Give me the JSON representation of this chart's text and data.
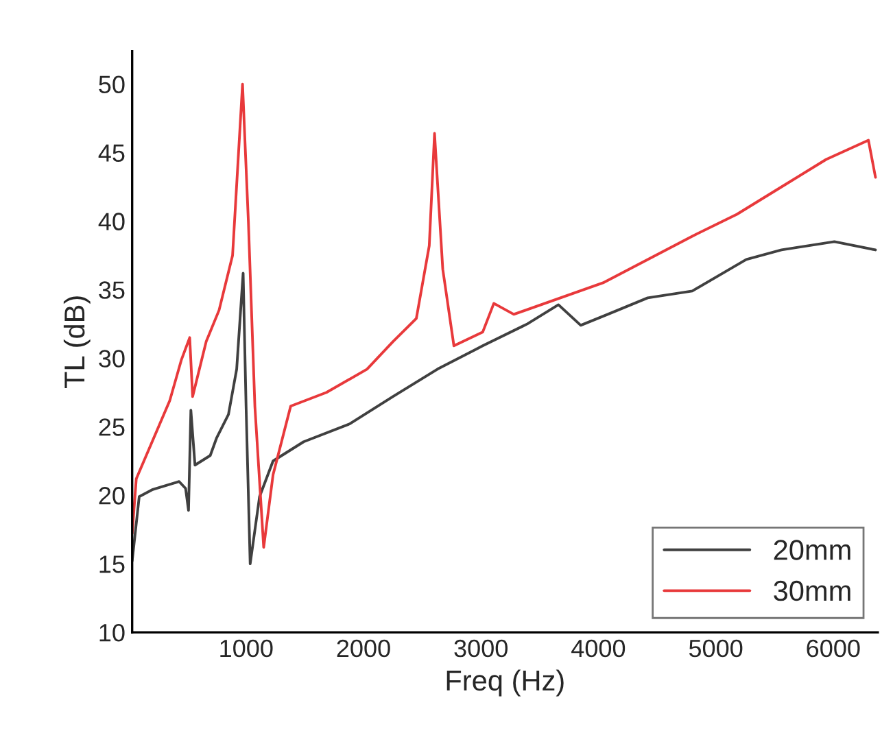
{
  "chart_data": {
    "type": "line",
    "xlabel": "Freq (Hz)",
    "ylabel": "TL (dB)",
    "xlim": [
      30,
      6380
    ],
    "ylim": [
      10,
      52.4
    ],
    "xticks": [
      1000,
      2000,
      3000,
      4000,
      5000,
      6000
    ],
    "yticks": [
      10,
      15,
      20,
      25,
      30,
      35,
      40,
      45,
      50
    ],
    "grid": false,
    "legend": "bottom right",
    "marker": "none",
    "line_style": "solid",
    "series": [
      {
        "name": "20mm",
        "color": "#404040",
        "x": [
          30,
          90,
          200,
          430,
          485,
          510,
          530,
          565,
          695,
          750,
          850,
          920,
          975,
          1000,
          1035,
          1115,
          1230,
          1490,
          1880,
          2250,
          2630,
          3015,
          3395,
          3660,
          3850,
          4080,
          4420,
          4800,
          5260,
          5560,
          6010,
          6360
        ],
        "values": [
          15.2,
          19.9,
          20.4,
          21,
          20.5,
          18.9,
          26.2,
          22.2,
          22.9,
          24.2,
          25.9,
          29.2,
          36.2,
          26.5,
          15,
          19.9,
          22.5,
          23.9,
          25.2,
          27.2,
          29.2,
          30.9,
          32.5,
          33.9,
          32.4,
          33.2,
          34.4,
          34.9,
          37.2,
          37.9,
          38.5,
          37.9
        ]
      },
      {
        "name": "30mm",
        "color": "#e8393b",
        "x": [
          30,
          65,
          200,
          350,
          450,
          520,
          545,
          660,
          770,
          885,
          970,
          1020,
          1075,
          1150,
          1230,
          1380,
          1685,
          2030,
          2250,
          2450,
          2560,
          2605,
          2675,
          2770,
          3015,
          3110,
          3280,
          4040,
          4800,
          5180,
          5560,
          5940,
          6300,
          6360
        ],
        "values": [
          17.2,
          21.2,
          23.9,
          26.9,
          29.9,
          31.5,
          27.2,
          31.2,
          33.5,
          37.5,
          50,
          39.9,
          26.5,
          16.2,
          21.5,
          26.5,
          27.5,
          29.2,
          31.2,
          32.9,
          38.2,
          46.4,
          36.5,
          30.9,
          31.9,
          34,
          33.2,
          35.5,
          38.9,
          40.5,
          42.5,
          44.5,
          45.9,
          43.2
        ]
      }
    ]
  }
}
